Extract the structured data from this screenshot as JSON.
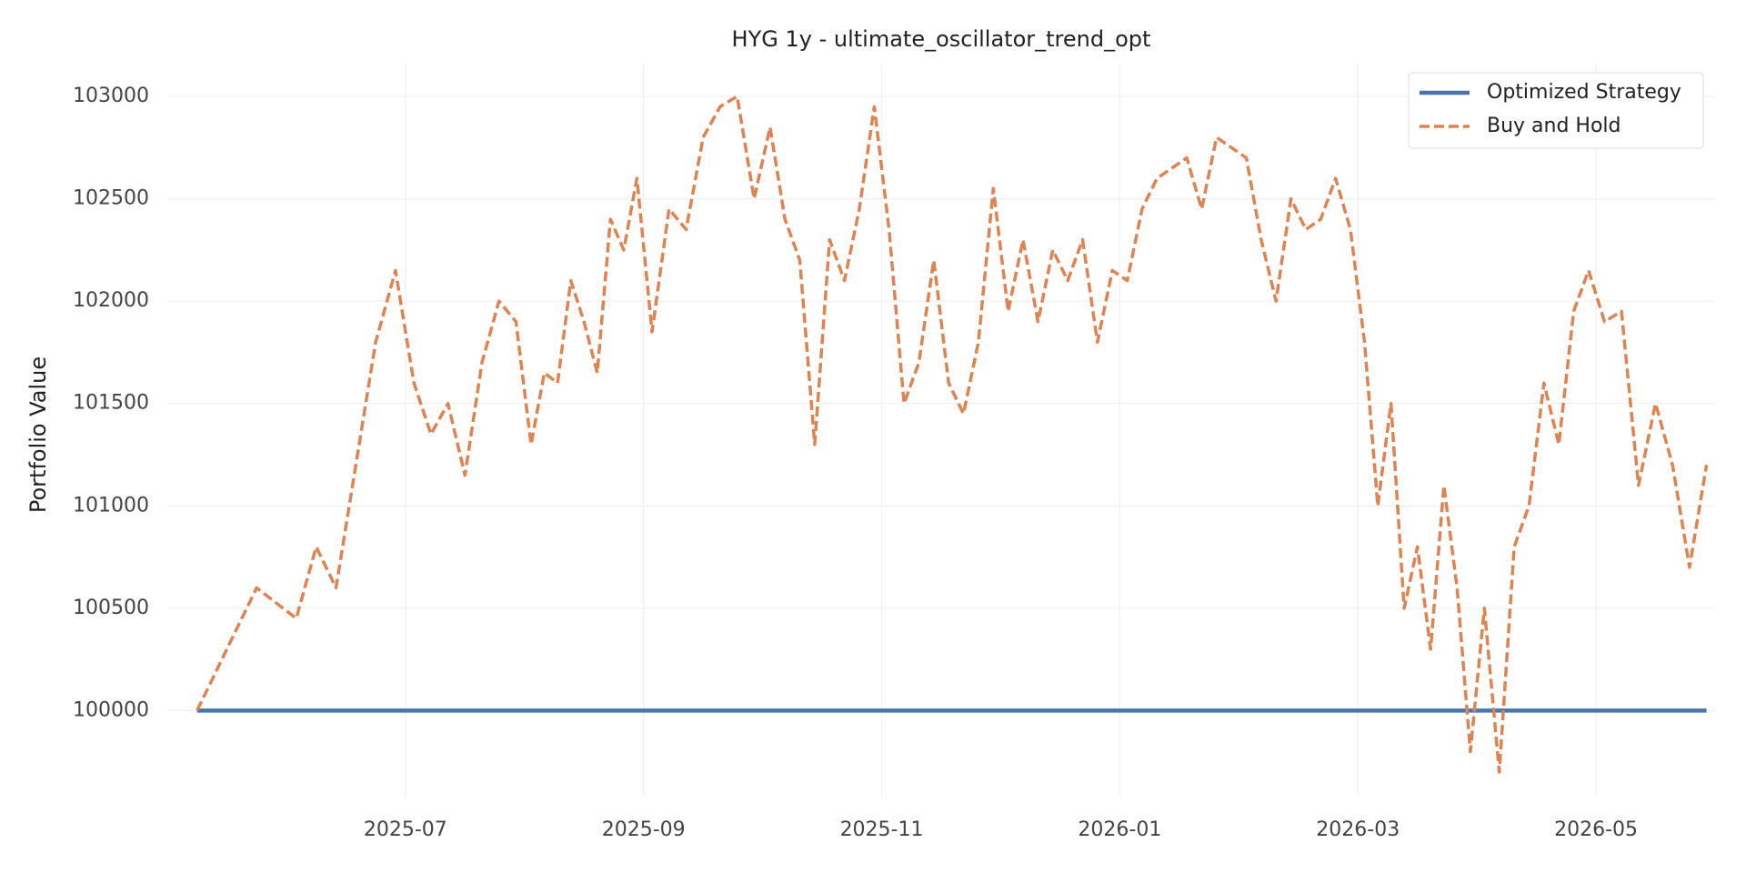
{
  "chart_data": {
    "type": "line",
    "title": "HYG 1y - ultimate_oscillator_trend_opt",
    "y_label": "Portfolio Value",
    "x": [
      "2025-05",
      "2025-05",
      "2025-06",
      "2025-06",
      "2025-06",
      "2025-06",
      "2025-06",
      "2025-06",
      "2025-07",
      "2025-07",
      "2025-07",
      "2025-07",
      "2025-07",
      "2025-07",
      "2025-07",
      "2025-08",
      "2025-08",
      "2025-08",
      "2025-08",
      "2025-08",
      "2025-08",
      "2025-08",
      "2025-08",
      "2025-08",
      "2025-09",
      "2025-09",
      "2025-09",
      "2025-09",
      "2025-09",
      "2025-09",
      "2025-09",
      "2025-10",
      "2025-10",
      "2025-10",
      "2025-10",
      "2025-10",
      "2025-10",
      "2025-10",
      "2025-10",
      "2025-11",
      "2025-11",
      "2025-11",
      "2025-11",
      "2025-11",
      "2025-11",
      "2025-11",
      "2025-11",
      "2025-12",
      "2025-12",
      "2025-12",
      "2025-12",
      "2025-12",
      "2025-12",
      "2025-12",
      "2025-12",
      "2026-01",
      "2026-01",
      "2026-01",
      "2026-01",
      "2026-01",
      "2026-01",
      "2026-01",
      "2026-01",
      "2026-02",
      "2026-02",
      "2026-02",
      "2026-02",
      "2026-02",
      "2026-02",
      "2026-02",
      "2026-02",
      "2026-03",
      "2026-03",
      "2026-03",
      "2026-03",
      "2026-03",
      "2026-03",
      "2026-03",
      "2026-03",
      "2026-03",
      "2026-04",
      "2026-04",
      "2026-04",
      "2026-04",
      "2026-04",
      "2026-04",
      "2026-04",
      "2026-04",
      "2026-05",
      "2026-05",
      "2026-05",
      "2026-05",
      "2026-05",
      "2026-05",
      "2026-05"
    ],
    "series": [
      {
        "name": "Optimized Strategy",
        "color": "#4c72b0",
        "linestyle": "solid",
        "values": [
          100000,
          100000,
          100000,
          100000,
          100000,
          100000,
          100000,
          100000,
          100000,
          100000,
          100000,
          100000,
          100000,
          100000,
          100000,
          100000,
          100000,
          100000,
          100000,
          100000,
          100000,
          100000,
          100000,
          100000,
          100000,
          100000,
          100000,
          100000,
          100000,
          100000,
          100000,
          100000,
          100000,
          100000,
          100000,
          100000,
          100000,
          100000,
          100000,
          100000,
          100000,
          100000,
          100000,
          100000,
          100000,
          100000,
          100000,
          100000,
          100000,
          100000,
          100000,
          100000,
          100000,
          100000,
          100000,
          100000,
          100000,
          100000,
          100000,
          100000,
          100000,
          100000,
          100000,
          100000,
          100000,
          100000,
          100000,
          100000,
          100000,
          100000,
          100000,
          100000,
          100000,
          100000,
          100000,
          100000,
          100000,
          100000,
          100000,
          100000,
          100000,
          100000,
          100000,
          100000,
          100000,
          100000,
          100000,
          100000,
          100000,
          100000,
          100000,
          100000,
          100000,
          100000,
          100000
        ]
      },
      {
        "name": "Buy and Hold",
        "color": "#dd8452",
        "linestyle": "dashed",
        "values": [
          100000,
          100600,
          100450,
          100800,
          100600,
          101200,
          101800,
          102150,
          101600,
          101350,
          101500,
          101150,
          101700,
          102000,
          101900,
          101300,
          101650,
          101600,
          102100,
          101900,
          101650,
          102400,
          102250,
          102600,
          101850,
          102450,
          102350,
          102800,
          102950,
          103000,
          102500,
          102850,
          102400,
          102200,
          101300,
          102300,
          102100,
          102450,
          102950,
          102350,
          101500,
          101700,
          102200,
          101600,
          101450,
          101800,
          102550,
          101950,
          102300,
          101900,
          102250,
          102100,
          102300,
          101800,
          102150,
          102100,
          102450,
          102600,
          102650,
          102700,
          102450,
          102800,
          102750,
          102700,
          102300,
          102000,
          102500,
          102350,
          102400,
          102600,
          102350,
          101800,
          101000,
          101500,
          100500,
          100800,
          100300,
          101100,
          100600,
          99800,
          100500,
          99700,
          100800,
          101000,
          101600,
          101300,
          101950,
          102150,
          101900,
          101950,
          101100,
          101500,
          101200,
          100700,
          101200
        ]
      }
    ],
    "xlim": [
      "2025-05",
      "2026-06"
    ],
    "xticks": [
      "2025-07",
      "2025-09",
      "2025-11",
      "2026-01",
      "2026-03",
      "2026-05"
    ],
    "ylim": [
      99580,
      103160
    ],
    "yticks": [
      100000,
      100500,
      101000,
      101500,
      102000,
      102500,
      103000
    ],
    "grid": true,
    "legend": "upper right"
  }
}
